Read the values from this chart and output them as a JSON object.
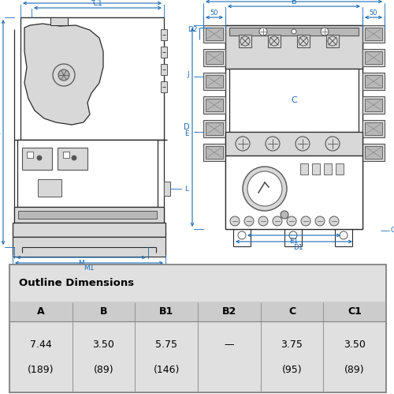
{
  "table_title": "Outline Dimensions",
  "headers": [
    "A",
    "B",
    "B1",
    "B2",
    "C",
    "C1"
  ],
  "row1": [
    "7.44",
    "3.50",
    "5.75",
    "—",
    "3.75",
    "3.50"
  ],
  "row2": [
    "(189)",
    "(89)",
    "(146)",
    "",
    "(95)",
    "(89)"
  ],
  "bg_color": "#e0e0e0",
  "dim_blue": "#1a6bb5",
  "draw_dark": "#2a2a2a",
  "draw_mid": "#555555",
  "draw_light": "#888888",
  "fill_light": "#d8d8d8",
  "fill_white": "#ffffff",
  "fill_mid": "#b8b8b8"
}
